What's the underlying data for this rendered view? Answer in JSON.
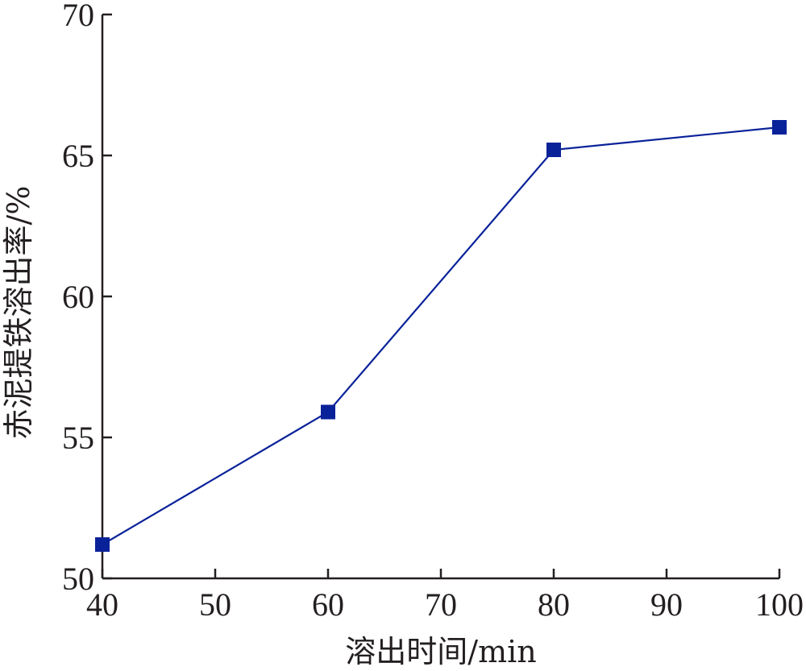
{
  "chart_data": {
    "type": "line",
    "title": "",
    "xlabel": "溶出时间/min",
    "ylabel": "赤泥提铁溶出率/%",
    "x": [
      40,
      60,
      80,
      100
    ],
    "series": [
      {
        "values": [
          51.2,
          55.9,
          65.2,
          66.0
        ],
        "color": "#0a2299"
      }
    ],
    "xlim": [
      40,
      100
    ],
    "ylim": [
      50,
      70
    ],
    "xticks": [
      40,
      50,
      60,
      70,
      80,
      90,
      100
    ],
    "yticks": [
      50,
      55,
      60,
      65,
      70
    ],
    "marker": "square",
    "grid": false
  }
}
